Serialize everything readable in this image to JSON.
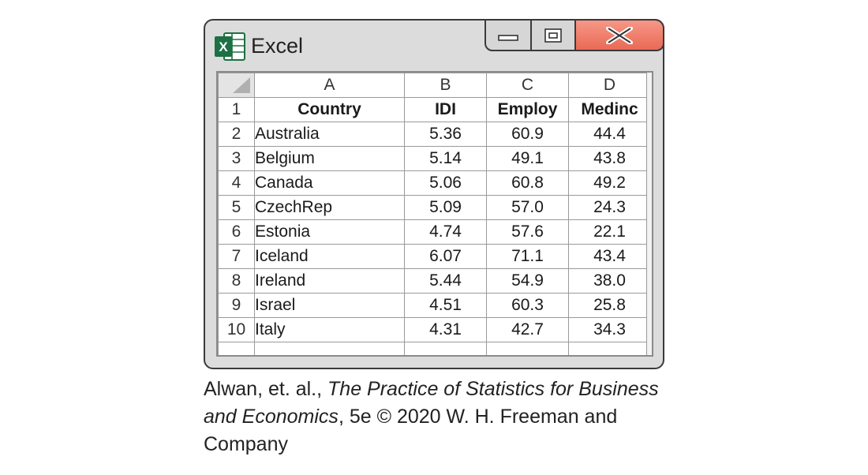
{
  "window": {
    "title": "Excel",
    "logo_letter": "X",
    "brand_color": "#1d7044"
  },
  "sheet": {
    "column_headers": [
      "A",
      "B",
      "C",
      "D"
    ],
    "row_numbers": [
      "1",
      "2",
      "3",
      "4",
      "5",
      "6",
      "7",
      "8",
      "9",
      "10"
    ],
    "field_names": [
      "Country",
      "IDI",
      "Employ",
      "Medinc"
    ],
    "rows": [
      [
        "Australia",
        "5.36",
        "60.9",
        "44.4"
      ],
      [
        "Belgium",
        "5.14",
        "49.1",
        "43.8"
      ],
      [
        "Canada",
        "5.06",
        "60.8",
        "49.2"
      ],
      [
        "CzechRep",
        "5.09",
        "57.0",
        "24.3"
      ],
      [
        "Estonia",
        "4.74",
        "57.6",
        "22.1"
      ],
      [
        "Iceland",
        "6.07",
        "71.1",
        "43.4"
      ],
      [
        "Ireland",
        "5.44",
        "54.9",
        "38.0"
      ],
      [
        "Israel",
        "4.51",
        "60.3",
        "25.8"
      ],
      [
        "Italy",
        "4.31",
        "42.7",
        "34.3"
      ]
    ]
  },
  "caption": {
    "authors": "Alwan, et. al., ",
    "book_title": "The Practice of Statistics for Business and Economics",
    "rest": ", 5e © 2020 W. H. Freeman and Company"
  },
  "colors": {
    "close_button": "#ee7a66",
    "window_frame": "#dcdcdc"
  }
}
